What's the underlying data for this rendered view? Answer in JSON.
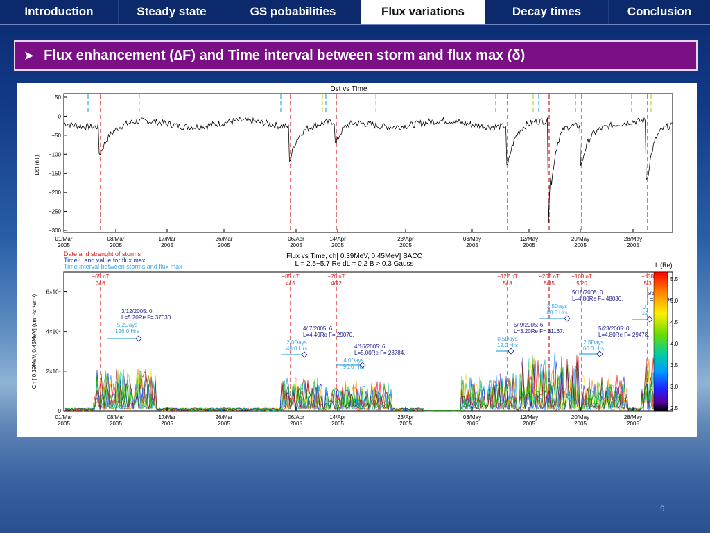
{
  "nav": {
    "tabs": [
      "Introduction",
      "Steady state",
      "GS pobabilities",
      "Flux variations",
      "Decay times",
      "Conclusion"
    ],
    "active_index": 3
  },
  "slide": {
    "title_parts": [
      "Flux enhancement (",
      "∆",
      "F)  and Time interval between storm and flux max (",
      "δ",
      ")"
    ],
    "page_number": "9"
  },
  "colors": {
    "nav_bg": "#0c2a6b",
    "title_bg": "#7a0f86",
    "storm_line": "#d21a1a",
    "fluxmax_line": "#2233aa",
    "interval_line": "#3aa7e0"
  },
  "figure": {
    "top_panel": {
      "title": "Dst vs TIme",
      "ylabel": "Dst (nT)",
      "yticks": [
        "50",
        "0",
        "−50",
        "−100",
        "−150",
        "−200",
        "−250",
        "−300"
      ]
    },
    "x_ticks": [
      [
        "01/Mar",
        "2005"
      ],
      [
        "08/Mar",
        "2005"
      ],
      [
        "17/Mar",
        "2005"
      ],
      [
        "26/Mar",
        "2005"
      ],
      [
        "06/Apr",
        "2005"
      ],
      [
        "14/Apr",
        "2005"
      ],
      [
        "23/Apr",
        "2005"
      ],
      [
        "03/May",
        "2005"
      ],
      [
        "12/May",
        "2005"
      ],
      [
        "20/May",
        "2005"
      ],
      [
        "28/May",
        "2005"
      ]
    ],
    "legend": [
      "Date and strenght of storms",
      "Time L and value for flux max",
      "Time interval between storms and flux max"
    ],
    "bottom_title": [
      "Flux vs Time, ch[  0.39MeV,  0.45MeV] SACC",
      "L = 2.5−5.7 Re dL =  0.2 B > 0.3 Gauss"
    ],
    "bottom_panel": {
      "ylabel": "Ch [  0.39MeV,  0.45MeV] (cm⁻²s⁻¹sr⁻¹)",
      "yticks": [
        "6×10⁴",
        "4×10⁴",
        "2×10⁴",
        "0"
      ]
    },
    "storms": [
      {
        "dst": "−65 nT",
        "date": "3/ 6"
      },
      {
        "dst": "−85 nT",
        "date": "4/ 5"
      },
      {
        "dst": "−70 nT",
        "date": "4/12"
      },
      {
        "dst": "−127 nT",
        "date": "5/ 8"
      },
      {
        "dst": "−263 nT",
        "date": "5/15"
      },
      {
        "dst": "−103 nT",
        "date": "5/20"
      },
      {
        "dst": "−138",
        "date": "5/3"
      }
    ],
    "annotations": [
      {
        "lines": [
          "3/12/2005: 0",
          "L=5.20Re F= 37030."
        ],
        "sub": [
          "5.2Days",
          "126.0 Hrs"
        ]
      },
      {
        "lines": [
          "4/ 7/2005: 6",
          "L=4.40Re F= 29070."
        ],
        "sub": [
          "2.0Days",
          "48.0 Hrs"
        ]
      },
      {
        "lines": [
          "4/16/2005: 6",
          "L=5.00Re F= 23784."
        ],
        "sub": [
          "4.0Days",
          "96.0 Hrs"
        ]
      },
      {
        "lines": [
          "5/ 9/2005: 6",
          "L=3.20Re F= 31167."
        ],
        "sub": [
          "0.5Days",
          "12.0 Hrs"
        ]
      },
      {
        "lines": [
          "5/18/2005: 0",
          "L=4.80Re F= 48036."
        ],
        "sub": [
          "2.5Days",
          "60.0 Hrs"
        ]
      },
      {
        "lines": [
          "5/23/2005: 0",
          "L=4.80Re F= 29478."
        ],
        "sub": [
          "2.5Days",
          "60.0 Hrs"
        ]
      },
      {
        "lines": [
          "5/31/",
          "L=3.60Re"
        ],
        "sub": [
          "0.",
          "12"
        ]
      }
    ],
    "colorbar": {
      "title": "L (Re)",
      "ticks": [
        "5.5",
        "5.0",
        "4.5",
        "4.0",
        "3.5",
        "3.0",
        "2.5"
      ]
    }
  }
}
